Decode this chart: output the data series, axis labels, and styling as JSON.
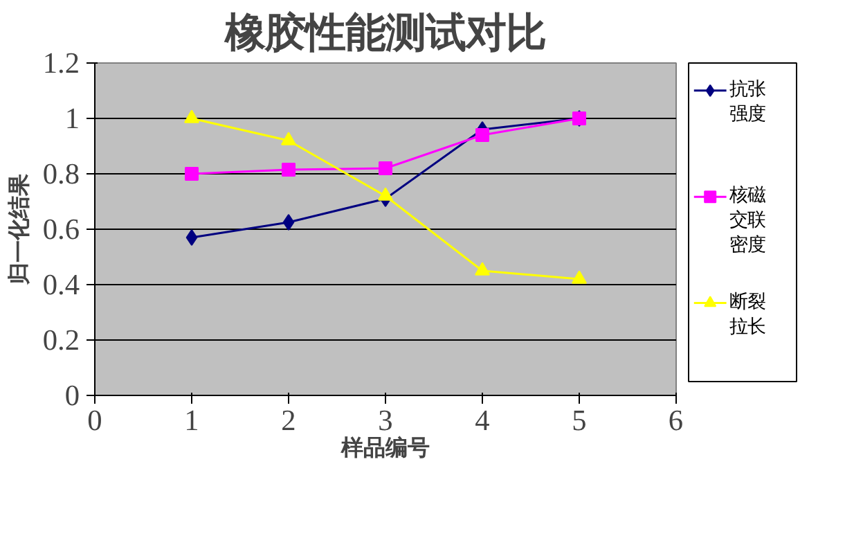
{
  "chart_data": {
    "type": "line",
    "title": "橡胶性能测试对比",
    "xlabel": "样品编号",
    "ylabel": "归一化结果",
    "x": [
      1,
      2,
      3,
      4,
      5
    ],
    "series": [
      {
        "name": "抗张强度",
        "color": "#000080",
        "marker": "diamond",
        "values": [
          0.57,
          0.625,
          0.71,
          0.96,
          1.0
        ]
      },
      {
        "name": "核磁交联密度",
        "color": "#ff00ff",
        "marker": "square",
        "values": [
          0.8,
          0.815,
          0.82,
          0.94,
          1.0
        ]
      },
      {
        "name": "断裂拉长",
        "color": "#ffff00",
        "marker": "triangle",
        "values": [
          1.0,
          0.92,
          0.72,
          0.45,
          0.42
        ]
      }
    ],
    "xlim": [
      0,
      6
    ],
    "xticks": [
      0,
      1,
      2,
      3,
      4,
      5,
      6
    ],
    "ylim": [
      0,
      1.2
    ],
    "yticks": [
      0,
      {
        "value": 0.2,
        "label": "0.2"
      },
      {
        "value": 0.4,
        "label": "0.4"
      },
      {
        "value": 0.6,
        "label": "0.6"
      },
      {
        "value": 0.8,
        "label": "0.8"
      },
      1,
      {
        "value": 1.2,
        "label": "1.2"
      }
    ],
    "grid": "y",
    "legend": "right",
    "line_style": "solid"
  }
}
